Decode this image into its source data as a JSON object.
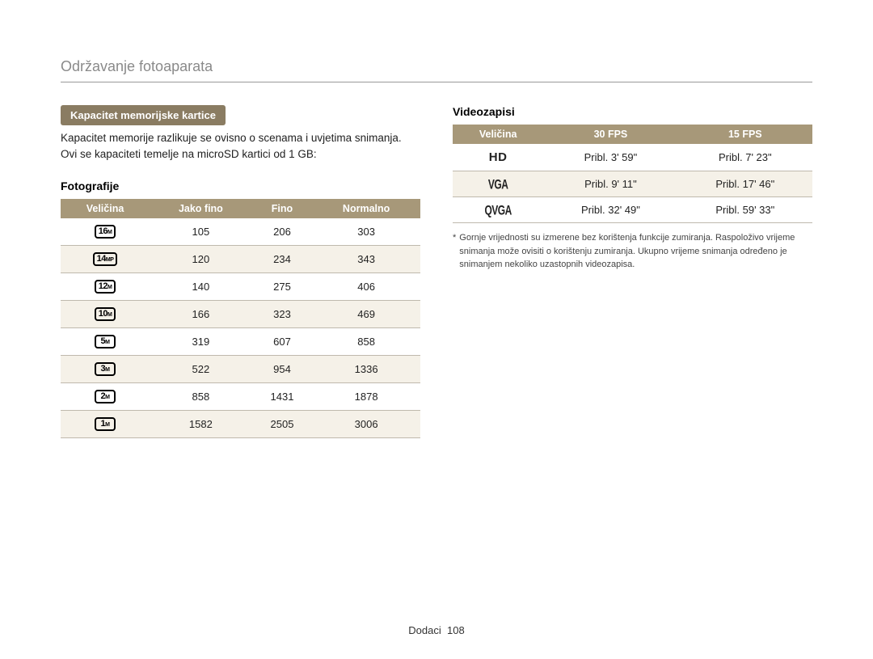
{
  "page": {
    "title": "Održavanje fotoaparata",
    "footer_label": "Dodaci",
    "footer_page": "108"
  },
  "left": {
    "pill": "Kapacitet memorijske kartice",
    "intro": "Kapacitet memorije razlikuje se ovisno o scenama i uvjetima snimanja. Ovi se kapaciteti temelje na microSD kartici od 1 GB:",
    "subheading": "Fotografije",
    "table": {
      "columns": [
        "Veličina",
        "Jako fino",
        "Fino",
        "Normalno"
      ],
      "rows": [
        {
          "size_big": "16",
          "size_sub": "M",
          "c1": "105",
          "c2": "206",
          "c3": "303"
        },
        {
          "size_big": "14",
          "size_sub": "MP",
          "c1": "120",
          "c2": "234",
          "c3": "343"
        },
        {
          "size_big": "12",
          "size_sub": "M",
          "c1": "140",
          "c2": "275",
          "c3": "406"
        },
        {
          "size_big": "10",
          "size_sub": "M",
          "c1": "166",
          "c2": "323",
          "c3": "469"
        },
        {
          "size_big": "5",
          "size_sub": "M",
          "c1": "319",
          "c2": "607",
          "c3": "858"
        },
        {
          "size_big": "3",
          "size_sub": "M",
          "c1": "522",
          "c2": "954",
          "c3": "1336"
        },
        {
          "size_big": "2",
          "size_sub": "M",
          "c1": "858",
          "c2": "1431",
          "c3": "1878"
        },
        {
          "size_big": "1",
          "size_sub": "M",
          "c1": "1582",
          "c2": "2505",
          "c3": "3006"
        }
      ]
    }
  },
  "right": {
    "subheading": "Videozapisi",
    "table": {
      "columns": [
        "Veličina",
        "30 FPS",
        "15 FPS"
      ],
      "rows": [
        {
          "badge_type": "hd",
          "badge_text": "HD",
          "c1": "Pribl. 3' 59\"",
          "c2": "Pribl. 7' 23\""
        },
        {
          "badge_type": "vga",
          "badge_text": "VGA",
          "c1": "Pribl. 9' 11\"",
          "c2": "Pribl. 17' 46\""
        },
        {
          "badge_type": "qvga",
          "badge_text": "QVGA",
          "c1": "Pribl. 32' 49\"",
          "c2": "Pribl. 59' 33\""
        }
      ]
    },
    "footnote_star": "*",
    "footnote": "Gornje vrijednosti su izmerene bez korištenja funkcije zumiranja. Raspoloživo vrijeme snimanja može ovisiti o korištenju zumiranja. Ukupno vrijeme snimanja određeno je snimanjem nekoliko uzastopnih videozapisa."
  },
  "style": {
    "header_bg": "#a79879",
    "header_text": "#ffffff",
    "pill_bg": "#8a7c62",
    "alt_row_bg": "#f5f1e8",
    "row_border": "#bfb9ad",
    "title_color": "#8a8a8a",
    "text_color": "#222222"
  }
}
